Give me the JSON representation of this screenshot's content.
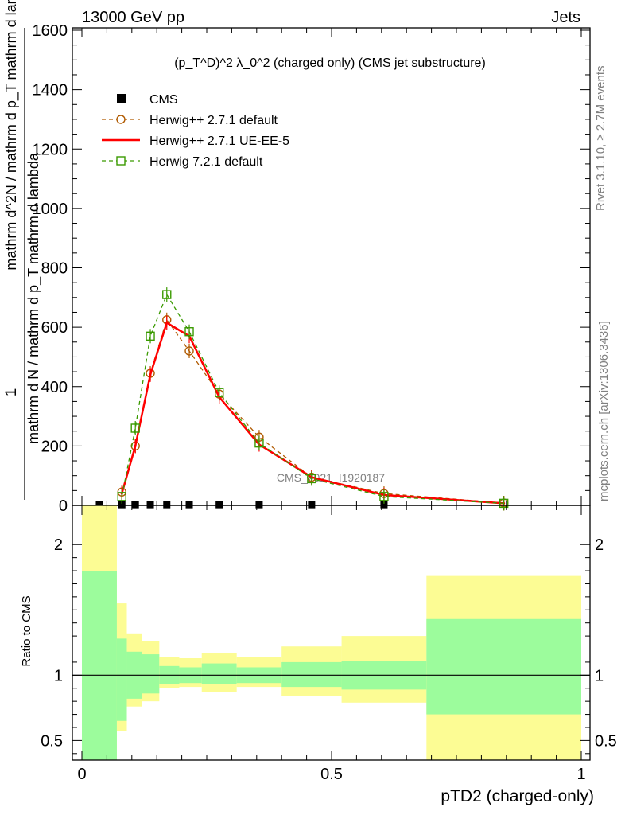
{
  "header": {
    "left": "13000 GeV pp",
    "right": "Jets"
  },
  "plot_title": "(p_T^D)^2 λ_0^2 (charged only) (CMS jet substructure)",
  "side_labels": {
    "rivet": "Rivet 3.1.10, ≥ 2.7M events",
    "mcplots": "mcplots.cern.ch [arXiv:1306.3436]"
  },
  "watermark": "CMS_2021_I1920187",
  "ylabel_top_fraction": "1",
  "ylabel_top_numerator": "mathrm d N / mathrm d p_T mathrm d lambda",
  "ylabel_top_denominator": "mathrm d^2N / mathrm d p_T mathrm d lambda",
  "ylabel_bottom": "Ratio to CMS",
  "xlabel": "pTD2 (charged-only)",
  "legend": [
    {
      "label": "CMS",
      "color": "#000000",
      "style": "square-marker"
    },
    {
      "label": "Herwig++ 2.7.1 default",
      "color": "#b05a00",
      "style": "dashed-circle"
    },
    {
      "label": "Herwig++ 2.7.1 UE-EE-5",
      "color": "#ff0000",
      "style": "solid-line"
    },
    {
      "label": "Herwig 7.2.1 default",
      "color": "#3a9a00",
      "style": "dashed-square"
    }
  ],
  "chart_data": [
    {
      "type": "line",
      "panel": "main",
      "xlim": [
        0,
        1
      ],
      "ylim": [
        0,
        1600
      ],
      "yticks": [
        "0",
        "200",
        "400",
        "600",
        "800",
        "1000",
        "1200",
        "1400",
        "1600"
      ],
      "series": [
        {
          "name": "CMS",
          "x": [
            0.035,
            0.08,
            0.107,
            0.137,
            0.17,
            0.215,
            0.275,
            0.355,
            0.46,
            0.605
          ],
          "values": [
            1,
            1,
            1,
            1,
            1,
            1,
            1,
            1,
            1,
            1
          ]
        },
        {
          "name": "Herwig++ 2.7.1 default",
          "x": [
            0.08,
            0.107,
            0.137,
            0.17,
            0.215,
            0.275,
            0.355,
            0.46,
            0.605,
            0.845
          ],
          "values": [
            45,
            200,
            445,
            625,
            520,
            375,
            230,
            95,
            40,
            8
          ]
        },
        {
          "name": "Herwig++ 2.7.1 UE-EE-5",
          "x": [
            0.08,
            0.107,
            0.137,
            0.17,
            0.215,
            0.275,
            0.355,
            0.46,
            0.605,
            0.845
          ],
          "values": [
            40,
            200,
            440,
            615,
            570,
            365,
            205,
            95,
            35,
            7
          ]
        },
        {
          "name": "Herwig 7.2.1 default",
          "x": [
            0.08,
            0.107,
            0.137,
            0.17,
            0.215,
            0.275,
            0.355,
            0.46,
            0.605,
            0.845
          ],
          "values": [
            30,
            260,
            570,
            710,
            585,
            380,
            210,
            90,
            30,
            7
          ]
        }
      ]
    },
    {
      "type": "area",
      "panel": "ratio",
      "xlim": [
        0,
        1
      ],
      "ylim": [
        0.35,
        2.3
      ],
      "reference_line": 1,
      "yticks": [
        "0.5",
        "1",
        "2"
      ],
      "xticks": [
        "0",
        "0.5",
        "1"
      ],
      "bins": [
        {
          "lo": 0.0,
          "hi": 0.07,
          "inner": [
            0.35,
            1.8
          ],
          "outer": [
            0.35,
            2.3
          ]
        },
        {
          "lo": 0.07,
          "hi": 0.09,
          "inner": [
            0.65,
            1.28
          ],
          "outer": [
            0.57,
            1.55
          ]
        },
        {
          "lo": 0.09,
          "hi": 0.12,
          "inner": [
            0.82,
            1.18
          ],
          "outer": [
            0.76,
            1.32
          ]
        },
        {
          "lo": 0.12,
          "hi": 0.155,
          "inner": [
            0.86,
            1.16
          ],
          "outer": [
            0.8,
            1.26
          ]
        },
        {
          "lo": 0.155,
          "hi": 0.195,
          "inner": [
            0.93,
            1.07
          ],
          "outer": [
            0.9,
            1.14
          ]
        },
        {
          "lo": 0.195,
          "hi": 0.24,
          "inner": [
            0.94,
            1.06
          ],
          "outer": [
            0.91,
            1.13
          ]
        },
        {
          "lo": 0.24,
          "hi": 0.31,
          "inner": [
            0.93,
            1.09
          ],
          "outer": [
            0.87,
            1.17
          ]
        },
        {
          "lo": 0.31,
          "hi": 0.4,
          "inner": [
            0.94,
            1.06
          ],
          "outer": [
            0.91,
            1.14
          ]
        },
        {
          "lo": 0.4,
          "hi": 0.52,
          "inner": [
            0.91,
            1.1
          ],
          "outer": [
            0.84,
            1.22
          ]
        },
        {
          "lo": 0.52,
          "hi": 0.69,
          "inner": [
            0.89,
            1.11
          ],
          "outer": [
            0.79,
            1.3
          ]
        },
        {
          "lo": 0.69,
          "hi": 1.0,
          "inner": [
            0.7,
            1.43
          ],
          "outer": [
            0.35,
            1.76
          ]
        }
      ]
    }
  ],
  "colors": {
    "band_inner": "#9cfc9c",
    "band_outer": "#fcfc94"
  }
}
